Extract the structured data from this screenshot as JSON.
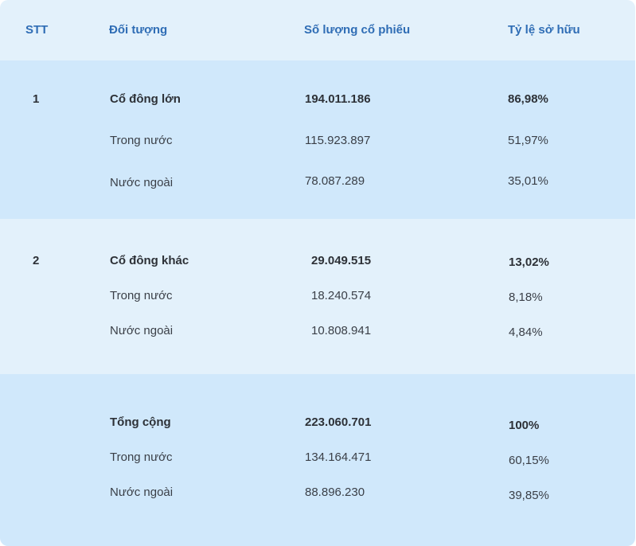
{
  "header": {
    "stt": "STT",
    "subject": "Đối tượng",
    "shares": "Số lượng cổ phiếu",
    "ratio": "Tỷ lệ sở hữu"
  },
  "groups": [
    {
      "stt": "1",
      "rows": [
        {
          "label": "Cổ đông lớn",
          "shares": "194.011.186",
          "ratio": "86,98%"
        },
        {
          "label": "Trong nước",
          "shares": "115.923.897",
          "ratio": "51,97%"
        },
        {
          "label": "Nước ngoài",
          "shares": "78.087.289",
          "ratio": "35,01%"
        }
      ]
    },
    {
      "stt": "2",
      "rows": [
        {
          "label": "Cổ đông khác",
          "shares": "29.049.515",
          "ratio": "13,02%"
        },
        {
          "label": "Trong nước",
          "shares": "18.240.574",
          "ratio": "8,18%"
        },
        {
          "label": "Nước ngoài",
          "shares": "10.808.941",
          "ratio": "4,84%"
        }
      ]
    },
    {
      "stt": "",
      "rows": [
        {
          "label": "Tổng cộng",
          "shares": "223.060.701",
          "ratio": "100%"
        },
        {
          "label": "Trong nước",
          "shares": "134.164.471",
          "ratio": "60,15%"
        },
        {
          "label": "Nước ngoài",
          "shares": "88.896.230",
          "ratio": "39,85%"
        }
      ]
    }
  ],
  "colors": {
    "header_text": "#2f6db5",
    "band_light": "#e3f1fb",
    "band_dark": "#d0e8fb"
  }
}
